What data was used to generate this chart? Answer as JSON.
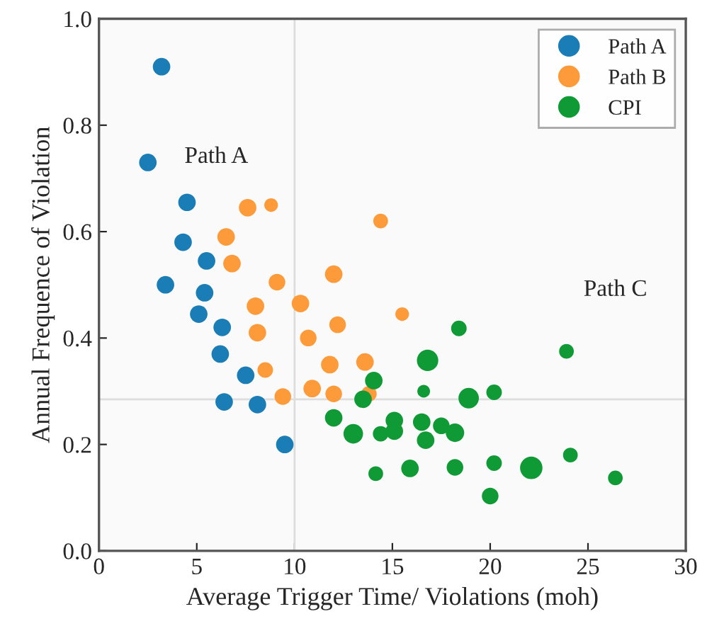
{
  "chart_data": {
    "type": "bubble",
    "xlabel": "Average Trigger Time/ Violations (moh)",
    "ylabel": "Annual Frequence of Violation",
    "xlim": [
      0,
      30
    ],
    "ylim": [
      0,
      1.0
    ],
    "xticks": [
      0,
      5,
      10,
      15,
      20,
      25,
      30
    ],
    "yticks": [
      {
        "value": 0,
        "label": "0.0"
      },
      {
        "value": 0.2,
        "label": "0.2"
      },
      {
        "value": 0.4,
        "label": "0.4"
      },
      {
        "value": 0.6,
        "label": "0.6"
      },
      {
        "value": 0.8,
        "label": "0.8"
      },
      {
        "value": 1.0,
        "label": "1.0"
      }
    ],
    "grid": false,
    "legend": "top right",
    "marker": "circle",
    "ref_lines": [
      {
        "axis": "x",
        "value": 10,
        "color": "#dddddd"
      },
      {
        "axis": "y",
        "value": 0.285,
        "color": "#dddddd"
      }
    ],
    "annotations": [
      "Path A",
      "Path C"
    ],
    "series": [
      {
        "name": "Path A",
        "color": "#1a7db6",
        "x": [
          3.2,
          2.5,
          4.5,
          4.3,
          5.5,
          3.4,
          5.4,
          5.1,
          6.3,
          6.2,
          7.5,
          6.4,
          8.1,
          9.5
        ],
        "values": [
          0.91,
          0.73,
          0.655,
          0.58,
          0.545,
          0.5,
          0.485,
          0.445,
          0.42,
          0.37,
          0.33,
          0.28,
          0.275,
          0.2
        ],
        "sizes": [
          0.61,
          0.61,
          0.61,
          0.61,
          0.61,
          0.61,
          0.61,
          0.61,
          0.61,
          0.61,
          0.61,
          0.61,
          0.61,
          0.61
        ]
      },
      {
        "name": "Path B",
        "color": "#fd9a39",
        "x": [
          7.6,
          8.8,
          6.5,
          6.8,
          14.4,
          12.0,
          9.1,
          8.0,
          10.3,
          8.1,
          12.2,
          10.7,
          15.5,
          8.5,
          11.8,
          13.6,
          10.9,
          12.0,
          9.4,
          13.8
        ],
        "values": [
          0.645,
          0.65,
          0.59,
          0.54,
          0.62,
          0.52,
          0.505,
          0.46,
          0.465,
          0.41,
          0.425,
          0.4,
          0.445,
          0.34,
          0.35,
          0.355,
          0.305,
          0.295,
          0.29,
          0.295
        ],
        "sizes": [
          0.61,
          0.37,
          0.61,
          0.61,
          0.43,
          0.61,
          0.55,
          0.61,
          0.61,
          0.61,
          0.55,
          0.55,
          0.37,
          0.48,
          0.61,
          0.61,
          0.61,
          0.55,
          0.55,
          0.48
        ]
      },
      {
        "name": "CPI",
        "color": "#0f9a35",
        "x": [
          14.05,
          13.5,
          12.0,
          13.0,
          14.4,
          15.1,
          15.1,
          14.15,
          15.9,
          18.4,
          16.8,
          23.9,
          16.6,
          18.9,
          20.2,
          16.5,
          17.5,
          16.7,
          18.2,
          18.2,
          20.2,
          22.1,
          24.1,
          26.4,
          20.0
        ],
        "values": [
          0.32,
          0.285,
          0.25,
          0.22,
          0.22,
          0.245,
          0.225,
          0.145,
          0.155,
          0.418,
          0.358,
          0.375,
          0.3,
          0.287,
          0.298,
          0.242,
          0.235,
          0.208,
          0.222,
          0.157,
          0.165,
          0.156,
          0.18,
          0.137,
          0.103
        ],
        "sizes": [
          0.61,
          0.61,
          0.61,
          0.76,
          0.48,
          0.61,
          0.61,
          0.43,
          0.61,
          0.48,
          0.91,
          0.43,
          0.32,
          0.83,
          0.48,
          0.61,
          0.55,
          0.61,
          0.68,
          0.55,
          0.48,
          1.0,
          0.43,
          0.43,
          0.55
        ]
      }
    ]
  }
}
